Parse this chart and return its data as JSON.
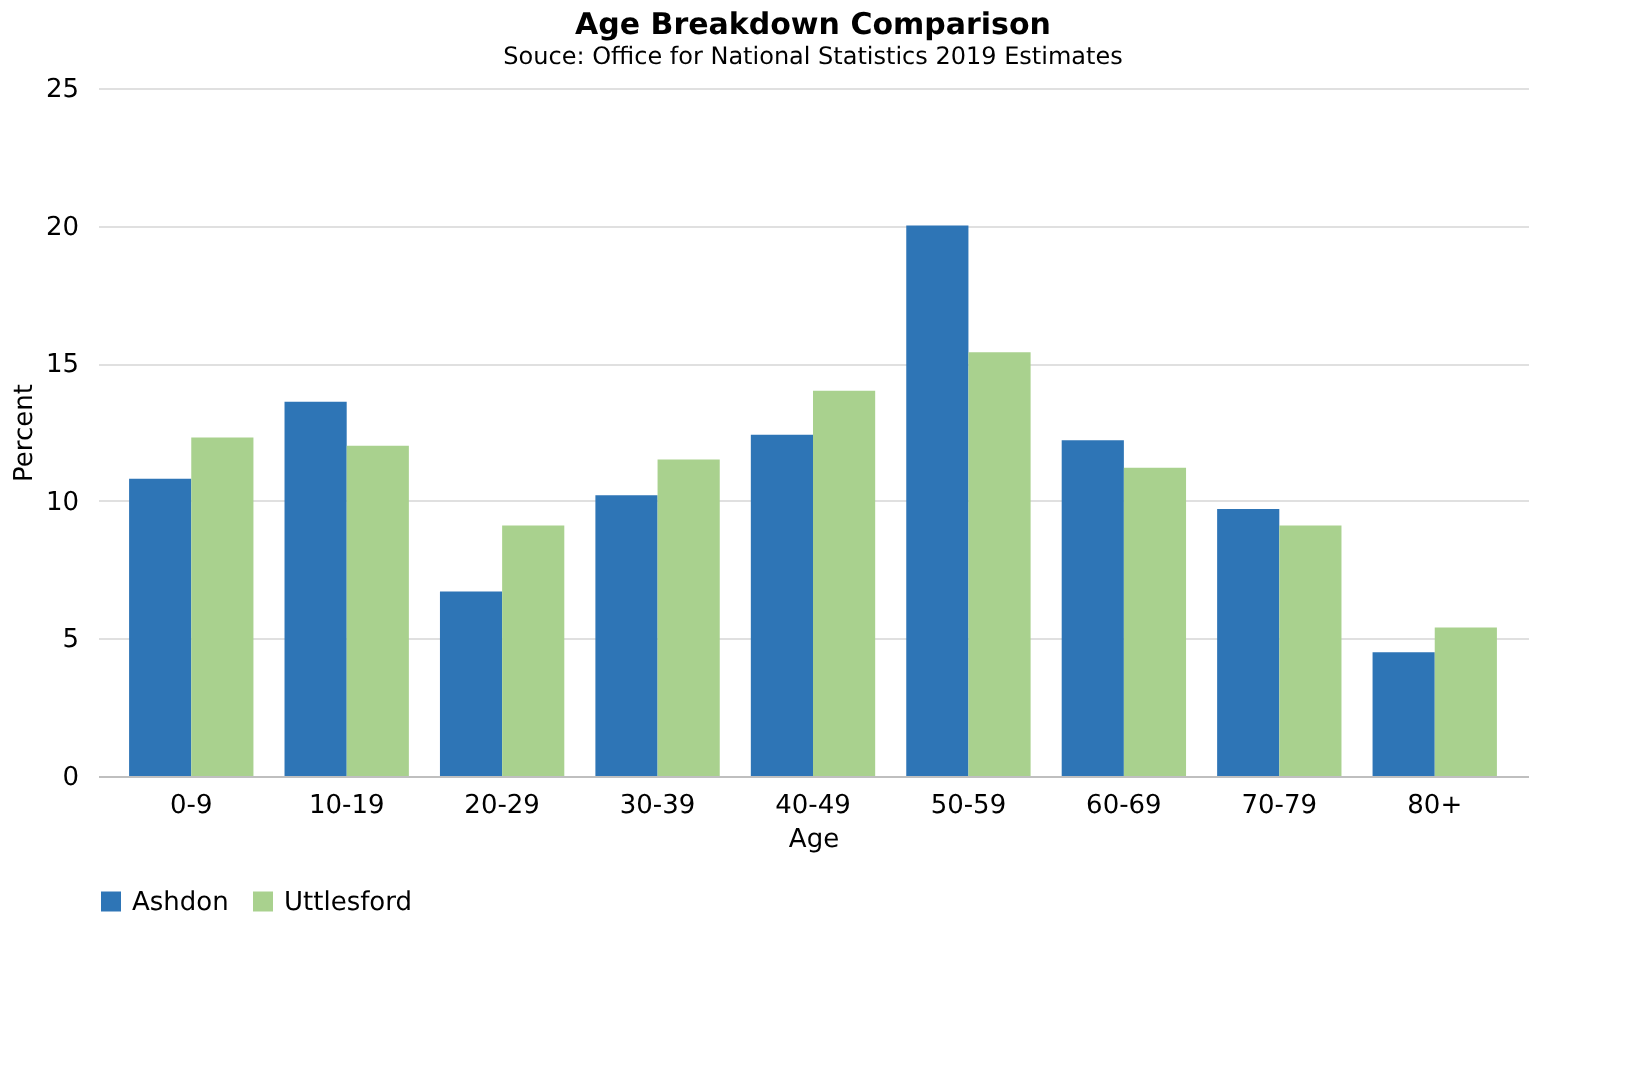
{
  "chart_data": {
    "type": "bar",
    "title": "Age Breakdown Comparison",
    "subtitle": "Souce: Office for National Statistics 2019 Estimates",
    "xlabel": "Age",
    "ylabel": "Percent",
    "categories": [
      "0-9",
      "10-19",
      "20-29",
      "30-39",
      "40-49",
      "50-59",
      "60-69",
      "70-79",
      "80+"
    ],
    "series": [
      {
        "name": "Ashdon",
        "color": "#2e75b6",
        "values": [
          10.8,
          13.6,
          6.7,
          10.2,
          12.4,
          20.0,
          12.2,
          9.7,
          4.5
        ]
      },
      {
        "name": "Uttlesford",
        "color": "#a9d18e",
        "values": [
          12.3,
          12.0,
          9.1,
          11.5,
          14.0,
          15.4,
          11.2,
          9.1,
          5.4
        ]
      }
    ],
    "ylim": [
      0,
      25
    ],
    "yticks": [
      0,
      5,
      10,
      15,
      20,
      25
    ],
    "grid": "y",
    "legend": "bottom"
  }
}
